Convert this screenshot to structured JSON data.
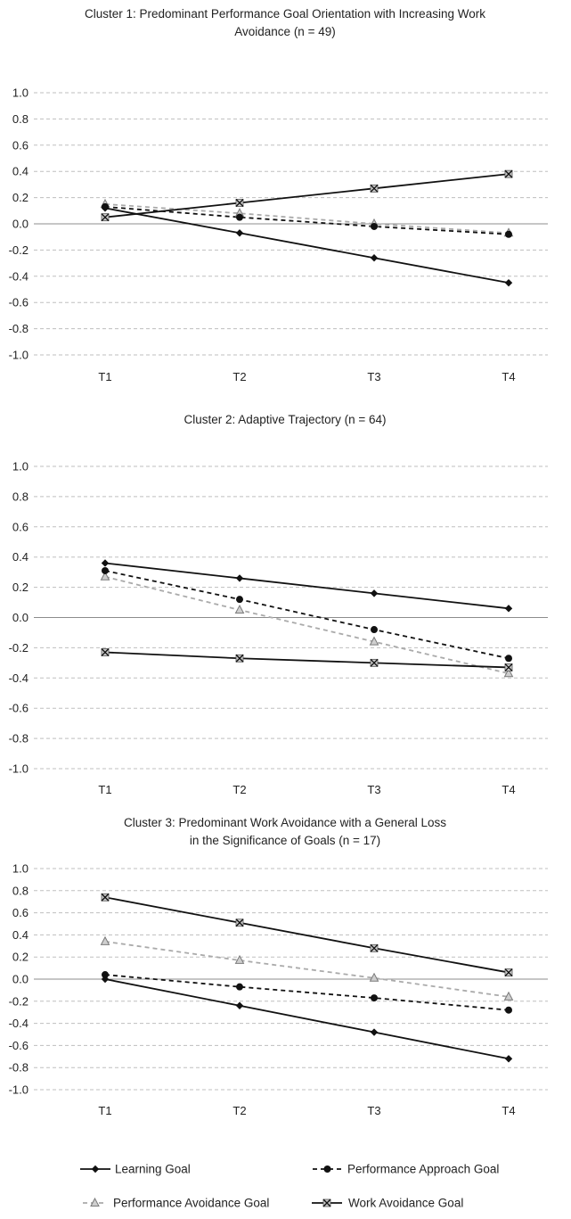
{
  "chart_data": [
    {
      "type": "line",
      "title_lines": [
        "Cluster 1: Predominant Performance Goal Orientation with Increasing Work",
        "Avoidance (n = 49)"
      ],
      "categories": [
        "T1",
        "T2",
        "T3",
        "T4"
      ],
      "ylim": [
        -1.0,
        1.0
      ],
      "yticks": [
        1.0,
        0.8,
        0.6,
        0.4,
        0.2,
        0.0,
        -0.2,
        -0.4,
        -0.6,
        -0.8,
        -1.0
      ],
      "ytick_labels": [
        "1.0",
        "0.8",
        "0.6",
        "0.4",
        "0.2",
        "0.0",
        "-0.2",
        "-0.4",
        "-0.6",
        "-0.8",
        "-1.0"
      ],
      "grid": true,
      "series": [
        {
          "name": "Learning Goal",
          "values": [
            0.12,
            -0.07,
            -0.26,
            -0.45
          ]
        },
        {
          "name": "Performance Approach Goal",
          "values": [
            0.13,
            0.05,
            -0.02,
            -0.08
          ]
        },
        {
          "name": "Performance Avoidance Goal",
          "values": [
            0.15,
            0.08,
            0.0,
            -0.07
          ]
        },
        {
          "name": "Work Avoidance Goal",
          "values": [
            0.05,
            0.16,
            0.27,
            0.38
          ]
        }
      ]
    },
    {
      "type": "line",
      "title_lines": [
        "Cluster 2: Adaptive Trajectory (n = 64)"
      ],
      "categories": [
        "T1",
        "T2",
        "T3",
        "T4"
      ],
      "ylim": [
        -1.0,
        1.0
      ],
      "yticks": [
        1.0,
        0.8,
        0.6,
        0.4,
        0.2,
        0.0,
        -0.2,
        -0.4,
        -0.6,
        -0.8,
        -1.0
      ],
      "ytick_labels": [
        "1.0",
        "0.8",
        "0.6",
        "0.4",
        "0.2",
        "0.0",
        "-0.2",
        "-0.4",
        "-0.6",
        "-0.8",
        "-1.0"
      ],
      "grid": true,
      "series": [
        {
          "name": "Learning Goal",
          "values": [
            0.36,
            0.26,
            0.16,
            0.06
          ]
        },
        {
          "name": "Performance Approach Goal",
          "values": [
            0.31,
            0.12,
            -0.08,
            -0.27
          ]
        },
        {
          "name": "Performance Avoidance Goal",
          "values": [
            0.27,
            0.05,
            -0.16,
            -0.37
          ]
        },
        {
          "name": "Work Avoidance Goal",
          "values": [
            -0.23,
            -0.27,
            -0.3,
            -0.33
          ]
        }
      ]
    },
    {
      "type": "line",
      "title_lines": [
        "Cluster 3: Predominant Work Avoidance with a General Loss",
        "in the Significance of Goals (n = 17)"
      ],
      "categories": [
        "T1",
        "T2",
        "T3",
        "T4"
      ],
      "ylim": [
        -1.0,
        1.0
      ],
      "yticks": [
        1.0,
        0.8,
        0.6,
        0.4,
        0.2,
        0.0,
        -0.2,
        -0.4,
        -0.6,
        -0.8,
        -1.0
      ],
      "ytick_labels": [
        "1.0",
        "0.8",
        "0.6",
        "0.4",
        "0.2",
        "0.0",
        "-0.2",
        "-0.4",
        "-0.6",
        "-0.8",
        "-1.0"
      ],
      "grid": true,
      "series": [
        {
          "name": "Learning Goal",
          "values": [
            0.0,
            -0.24,
            -0.48,
            -0.72
          ]
        },
        {
          "name": "Performance Approach Goal",
          "values": [
            0.04,
            -0.07,
            -0.17,
            -0.28
          ]
        },
        {
          "name": "Performance Avoidance Goal",
          "values": [
            0.34,
            0.17,
            0.01,
            -0.16
          ]
        },
        {
          "name": "Work Avoidance Goal",
          "values": [
            0.74,
            0.51,
            0.28,
            0.06
          ]
        }
      ]
    }
  ],
  "legend": {
    "placement": "bottom",
    "items": [
      {
        "label": "Learning Goal",
        "marker": "diamond",
        "line": "solid",
        "color": "#111111"
      },
      {
        "label": "Performance Approach Goal",
        "marker": "circle",
        "line": "dashed",
        "color": "#111111"
      },
      {
        "label": "Performance Avoidance Goal",
        "marker": "triangle",
        "line": "dashed",
        "color": "#aaaaaa"
      },
      {
        "label": "Work Avoidance Goal",
        "marker": "cross-box",
        "line": "solid",
        "color": "#111111"
      }
    ]
  },
  "series_styles": [
    {
      "color": "#111111",
      "dash": "",
      "marker": "diamond"
    },
    {
      "color": "#111111",
      "dash": "5,4",
      "marker": "circle"
    },
    {
      "color": "#aaaaaa",
      "dash": "5,4",
      "marker": "triangle"
    },
    {
      "color": "#111111",
      "dash": "",
      "marker": "cross-box"
    }
  ],
  "colors": {
    "grid": "#bfbfbf",
    "zero_axis": "#8c8c8c",
    "text": "#222222"
  }
}
